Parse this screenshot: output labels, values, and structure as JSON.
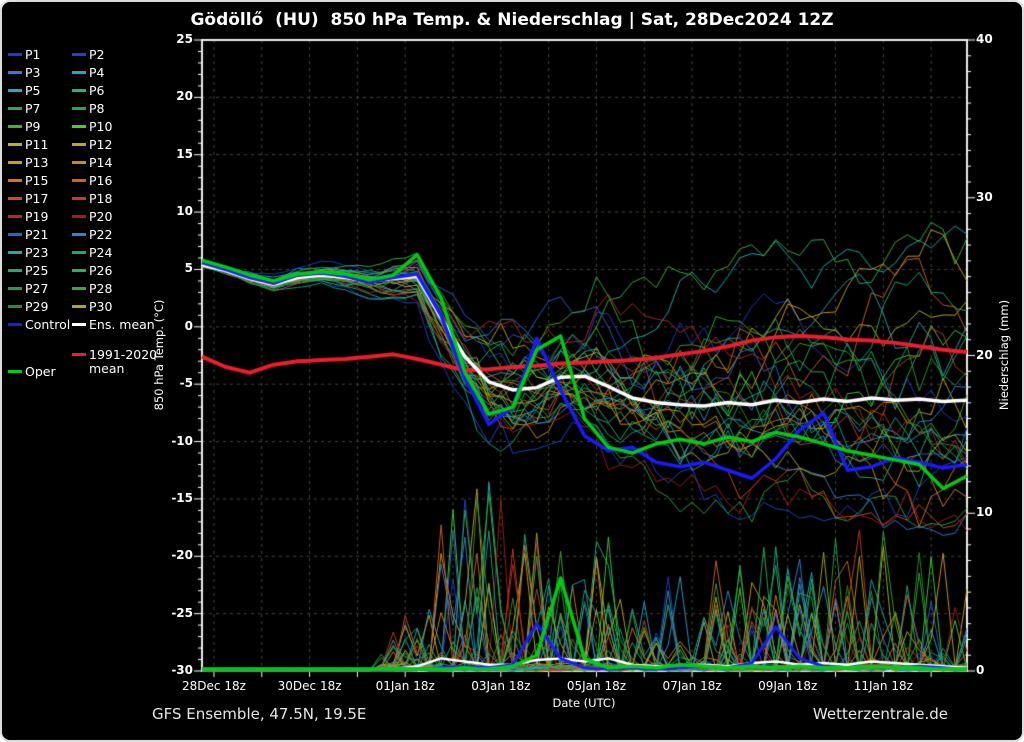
{
  "header": {
    "title": "Gödöllő  (HU)  850 hPa Temp. & Niederschlag | Sat, 28Dec2024 12Z"
  },
  "footer": {
    "left": "GFS Ensemble, 47.5N, 19.5E",
    "right": "Wetterzentrale.de"
  },
  "legend": {
    "control": {
      "label": "Control",
      "color": "#1a1aff"
    },
    "ens_mean": {
      "label": "Ens. mean",
      "color": "#ffffff"
    },
    "climate": {
      "label_lines": [
        "1991-2020",
        "mean"
      ],
      "color": "#ee1c2c"
    },
    "oper": {
      "label": "Oper",
      "color": "#00cc11"
    }
  },
  "chart_data": {
    "type": "line",
    "title": "Gödöllő (HU) 850 hPa Temp. & Niederschlag | Sat, 28Dec2024 12Z",
    "legend_position": "left",
    "background": "#000000",
    "grid": {
      "on": true,
      "color": "#45453a",
      "x_step_hours": 24,
      "y_step_temp": 5
    },
    "x_axis": {
      "label": "Date (UTC)",
      "start": "28Dec2024 12Z",
      "range_hours": [
        0,
        384
      ],
      "ticks": [
        {
          "hour": 6,
          "label": "28Dec 18z"
        },
        {
          "hour": 54,
          "label": "30Dec 18z"
        },
        {
          "hour": 102,
          "label": "01Jan 18z"
        },
        {
          "hour": 150,
          "label": "03Jan 18z"
        },
        {
          "hour": 198,
          "label": "05Jan 18z"
        },
        {
          "hour": 246,
          "label": "07Jan 18z"
        },
        {
          "hour": 294,
          "label": "09Jan 18z"
        },
        {
          "hour": 342,
          "label": "11Jan 18z"
        }
      ]
    },
    "temp_axis": {
      "label": "850 hPa Temp. (°C)",
      "range": [
        -30,
        25
      ],
      "ticks": [
        25,
        20,
        15,
        10,
        5,
        0,
        -5,
        -10,
        -15,
        -20,
        -25,
        -30
      ]
    },
    "precip_axis": {
      "label": "Niederschlag (mm)",
      "range": [
        0,
        40
      ],
      "ticks": [
        40,
        30,
        20,
        10,
        0
      ]
    },
    "x_step_hours": 12,
    "series": [
      {
        "name": "Ens. mean temp",
        "axis": "temp",
        "color": "#ffffff",
        "width": 3.5,
        "values": [
          5.4,
          4.9,
          4.2,
          3.7,
          4.3,
          4.5,
          4.3,
          4.0,
          4.2,
          4.4,
          0.8,
          -2.6,
          -4.8,
          -5.5,
          -5.3,
          -4.4,
          -4.3,
          -5.2,
          -6.2,
          -6.6,
          -6.8,
          -6.9,
          -6.6,
          -6.8,
          -6.4,
          -6.6,
          -6.3,
          -6.5,
          -6.2,
          -6.4,
          -6.3,
          -6.5,
          -6.4
        ]
      },
      {
        "name": "Control temp",
        "axis": "temp",
        "color": "#1a1aff",
        "width": 3.5,
        "values": [
          5.6,
          5.0,
          4.3,
          3.8,
          4.5,
          4.7,
          4.4,
          3.9,
          4.3,
          4.6,
          1.0,
          -4.5,
          -8.5,
          -7.0,
          -1.0,
          -5.5,
          -9.5,
          -10.8,
          -10.5,
          -11.8,
          -12.2,
          -11.8,
          -12.5,
          -13.2,
          -11.5,
          -9.0,
          -7.5,
          -12.5,
          -12.2,
          -11.4,
          -11.8,
          -12.3,
          -12.0
        ]
      },
      {
        "name": "Oper temp",
        "axis": "temp",
        "color": "#00cc11",
        "width": 3.5,
        "values": [
          5.8,
          5.2,
          4.5,
          4.0,
          4.6,
          4.8,
          4.6,
          4.1,
          4.5,
          6.3,
          2.5,
          -4.0,
          -7.6,
          -7.0,
          -2.0,
          -0.8,
          -8.0,
          -10.5,
          -11.0,
          -10.2,
          -9.8,
          -10.2,
          -9.6,
          -10.0,
          -9.2,
          -9.6,
          -10.2,
          -10.8,
          -11.2,
          -11.6,
          -12.0,
          -14.1,
          -13.0
        ]
      },
      {
        "name": "1991-2020 mean temp",
        "axis": "temp",
        "color": "#ee1c2c",
        "width": 4,
        "values": [
          -2.6,
          -3.5,
          -4.0,
          -3.3,
          -3.0,
          -2.9,
          -2.8,
          -2.6,
          -2.4,
          -2.8,
          -3.3,
          -3.8,
          -3.7,
          -3.5,
          -3.4,
          -3.2,
          -3.1,
          -3.0,
          -2.9,
          -2.7,
          -2.4,
          -2.1,
          -1.7,
          -1.2,
          -0.9,
          -0.8,
          -0.9,
          -1.1,
          -1.2,
          -1.4,
          -1.7,
          -2.0,
          -2.2
        ]
      },
      {
        "name": "Ens. mean precip",
        "axis": "precip",
        "color": "#ffffff",
        "width": 2.5,
        "values": [
          0,
          0,
          0,
          0,
          0,
          0,
          0,
          0,
          0.1,
          0.3,
          0.8,
          0.6,
          0.4,
          0.4,
          0.7,
          0.8,
          0.6,
          0.8,
          0.4,
          0.3,
          0.3,
          0.4,
          0.3,
          0.5,
          0.6,
          0.4,
          0.5,
          0.4,
          0.6,
          0.5,
          0.4,
          0.3,
          0.2
        ]
      },
      {
        "name": "Control precip",
        "axis": "precip",
        "color": "#1a1aff",
        "width": 3,
        "values": [
          0,
          0,
          0,
          0,
          0,
          0,
          0,
          0,
          0,
          0,
          0.2,
          0.3,
          0.2,
          0.4,
          3.0,
          0.8,
          0.2,
          0.1,
          0.2,
          0.1,
          0.2,
          0.3,
          0.2,
          0.5,
          2.8,
          0.8,
          0.3,
          0.2,
          0.3,
          0.2,
          0.3,
          0.2,
          0.1
        ]
      },
      {
        "name": "Oper precip",
        "axis": "precip",
        "color": "#00cc11",
        "width": 3.5,
        "values": [
          0,
          0,
          0,
          0,
          0,
          0,
          0,
          0,
          0,
          0,
          0.1,
          0.2,
          0.1,
          0.3,
          1.0,
          5.9,
          0.8,
          0.2,
          0.3,
          0.2,
          0.4,
          0.3,
          0.2,
          0.3,
          0.2,
          0.3,
          0.2,
          0.2,
          0.3,
          0.2,
          0.2,
          0.1,
          0.1
        ]
      }
    ],
    "ensemble": {
      "members": [
        {
          "label": "P1",
          "color": "#2238cc"
        },
        {
          "label": "P2",
          "color": "#2244cc"
        },
        {
          "label": "P3",
          "color": "#2d7fd3"
        },
        {
          "label": "P4",
          "color": "#28a0cc"
        },
        {
          "label": "P5",
          "color": "#1cb0b4"
        },
        {
          "label": "P6",
          "color": "#17b389"
        },
        {
          "label": "P7",
          "color": "#22aa66"
        },
        {
          "label": "P8",
          "color": "#26a744"
        },
        {
          "label": "P9",
          "color": "#3ab53b"
        },
        {
          "label": "P10",
          "color": "#3ed32b"
        },
        {
          "label": "P11",
          "color": "#b4b422"
        },
        {
          "label": "P12",
          "color": "#c2a51e"
        },
        {
          "label": "P13",
          "color": "#d39a21"
        },
        {
          "label": "P14",
          "color": "#d3891f"
        },
        {
          "label": "P15",
          "color": "#d3761d"
        },
        {
          "label": "P16",
          "color": "#cc641c"
        },
        {
          "label": "P17",
          "color": "#cc4f1c"
        },
        {
          "label": "P18",
          "color": "#c93d1e"
        },
        {
          "label": "P19",
          "color": "#bb2a1e"
        },
        {
          "label": "P20",
          "color": "#a31c1c"
        },
        {
          "label": "P21",
          "color": "#2a63cc"
        },
        {
          "label": "P22",
          "color": "#2e86d3"
        },
        {
          "label": "P23",
          "color": "#27a2ae"
        },
        {
          "label": "P24",
          "color": "#1ba586"
        },
        {
          "label": "P25",
          "color": "#23a96d"
        },
        {
          "label": "P26",
          "color": "#25b25b"
        },
        {
          "label": "P27",
          "color": "#2a9a46"
        },
        {
          "label": "P28",
          "color": "#35ab35"
        },
        {
          "label": "P29",
          "color": "#2c8c28"
        },
        {
          "label": "P30",
          "color": "#a8a825"
        }
      ],
      "temp_half_spread": [
        0.4,
        0.5,
        0.7,
        0.8,
        0.9,
        1.0,
        1.1,
        1.3,
        1.8,
        2.3,
        3.2,
        4.5,
        6.0,
        6.0,
        5.5,
        5.5,
        5.5,
        6.0,
        6.5,
        6.5,
        7.0,
        7.0,
        7.0,
        7.5,
        7.5,
        8.0,
        8.0,
        8.0,
        8.0,
        8.0,
        8.5,
        8.5,
        8.5
      ],
      "precip_max": [
        0,
        0,
        0,
        0,
        0,
        0,
        0,
        0,
        3,
        6,
        10,
        13,
        13,
        12,
        9,
        9,
        8,
        9,
        6,
        6,
        6,
        6,
        8,
        9,
        9,
        8,
        8,
        9,
        9,
        9,
        8,
        8,
        6
      ],
      "members_note": "thin member curves synthesized within spread envelope"
    }
  }
}
